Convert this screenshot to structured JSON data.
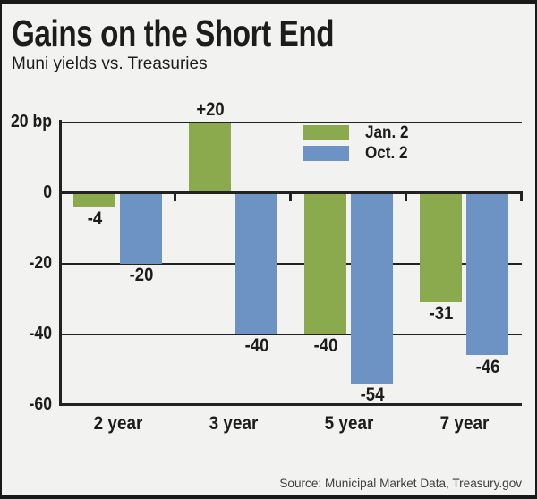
{
  "header": {
    "title": "Gains on the Short End",
    "subtitle": "Muni yields vs. Treasuries"
  },
  "footer": {
    "source": "Source: Municipal Market Data, Treasury.gov"
  },
  "colors": {
    "background": "#f2f2f0",
    "frame_border": "#191919",
    "axis_line": "#222222",
    "jan2_green": "#8baa4d",
    "oct2_blue": "#6d93c4"
  },
  "chart_data": {
    "type": "bar",
    "title": "Gains on the Short End",
    "subtitle": "Muni yields vs. Treasuries",
    "unit": "bp",
    "categories": [
      "2 year",
      "3 year",
      "5 year",
      "7 year"
    ],
    "series": [
      {
        "name": "Jan. 2",
        "color": "#8baa4d",
        "values": [
          -4,
          20,
          -40,
          -31
        ],
        "labels": [
          "-4",
          "+20",
          "-40",
          "-31"
        ]
      },
      {
        "name": "Oct. 2",
        "color": "#6d93c4",
        "values": [
          -20,
          -40,
          -54,
          -46
        ],
        "labels": [
          "-20",
          "-40",
          "-54",
          "-46"
        ]
      }
    ],
    "yticks": [
      {
        "value": 20,
        "label": "20 bp"
      },
      {
        "value": 0,
        "label": "0"
      },
      {
        "value": -20,
        "label": "-20"
      },
      {
        "value": -40,
        "label": "-40"
      },
      {
        "value": -60,
        "label": "-60"
      }
    ],
    "ylim": [
      -60,
      20
    ],
    "grid": "horizontal",
    "legend_position": "top-right",
    "source": "Source: Municipal Market Data, Treasury.gov"
  }
}
